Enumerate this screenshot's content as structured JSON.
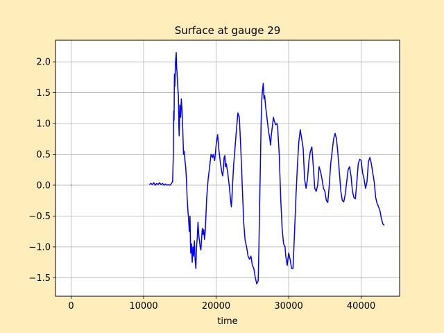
{
  "chart_data": {
    "type": "line",
    "title": "Surface at gauge 29",
    "xlabel": "time",
    "ylabel": "",
    "xlim": [
      -2150,
      45300
    ],
    "ylim": [
      -1.8,
      2.35
    ],
    "xticks": [
      0,
      10000,
      20000,
      30000,
      40000
    ],
    "xtick_labels": [
      "0",
      "10000",
      "20000",
      "30000",
      "40000"
    ],
    "yticks": [
      -1.5,
      -1.0,
      -0.5,
      0.0,
      0.5,
      1.0,
      1.5,
      2.0
    ],
    "ytick_labels": [
      "−1.5",
      "−1.0",
      "−0.5",
      "0.0",
      "0.5",
      "1.0",
      "1.5",
      "2.0"
    ],
    "grid": true,
    "colors": {
      "line": "#0000ff",
      "background": "#ffeebb",
      "plot_area": "#ffffff",
      "grid": "#b0b0b0"
    },
    "series": [
      {
        "segments": [
          [
            [
              0,
              0.0
            ],
            [
              60,
              0.0
            ]
          ],
          [
            [
              10800,
              0.01
            ],
            [
              11000,
              0.03
            ],
            [
              11200,
              0.01
            ],
            [
              11400,
              0.04
            ],
            [
              11600,
              0.0
            ],
            [
              11800,
              0.03
            ],
            [
              12000,
              0.01
            ],
            [
              12200,
              0.04
            ],
            [
              12400,
              0.01
            ],
            [
              12600,
              0.03
            ],
            [
              12800,
              0.0
            ],
            [
              13000,
              0.02
            ],
            [
              13200,
              0.0
            ],
            [
              13400,
              0.01
            ],
            [
              13600,
              0.0
            ],
            [
              13800,
              0.02
            ],
            [
              14000,
              0.06
            ],
            [
              14100,
              0.5
            ],
            [
              14150,
              1.2
            ],
            [
              14200,
              1.05
            ],
            [
              14250,
              1.8
            ],
            [
              14300,
              1.6
            ],
            [
              14400,
              2.0
            ],
            [
              14500,
              2.15
            ],
            [
              14550,
              1.9
            ],
            [
              14600,
              1.85
            ],
            [
              14700,
              1.6
            ],
            [
              14800,
              1.45
            ],
            [
              14850,
              1.0
            ],
            [
              14900,
              0.8
            ],
            [
              15000,
              1.3
            ],
            [
              15100,
              1.1
            ],
            [
              15200,
              1.4
            ],
            [
              15300,
              1.2
            ],
            [
              15400,
              0.9
            ],
            [
              15500,
              0.5
            ],
            [
              15600,
              0.55
            ],
            [
              15700,
              0.4
            ],
            [
              15800,
              0.3
            ],
            [
              15900,
              0.1
            ],
            [
              16000,
              -0.2
            ],
            [
              16100,
              -0.4
            ],
            [
              16200,
              -0.55
            ],
            [
              16300,
              -0.75
            ],
            [
              16400,
              -0.5
            ],
            [
              16450,
              -0.9
            ],
            [
              16500,
              -1.1
            ],
            [
              16600,
              -0.95
            ],
            [
              16700,
              -1.25
            ],
            [
              16800,
              -1.0
            ],
            [
              16900,
              -1.15
            ],
            [
              17000,
              -0.9
            ],
            [
              17100,
              -1.2
            ],
            [
              17200,
              -1.35
            ],
            [
              17300,
              -1.0
            ],
            [
              17400,
              -0.85
            ],
            [
              17500,
              -0.6
            ],
            [
              17600,
              -0.8
            ],
            [
              17800,
              -1.0
            ],
            [
              17900,
              -1.05
            ],
            [
              18000,
              -0.85
            ],
            [
              18100,
              -0.7
            ],
            [
              18200,
              -0.8
            ],
            [
              18300,
              -0.72
            ],
            [
              18400,
              -0.88
            ],
            [
              18500,
              -0.75
            ],
            [
              18700,
              -0.2
            ],
            [
              18900,
              0.1
            ],
            [
              19100,
              0.3
            ],
            [
              19300,
              0.5
            ],
            [
              19500,
              0.45
            ],
            [
              19600,
              0.5
            ],
            [
              19800,
              0.4
            ],
            [
              20000,
              0.65
            ],
            [
              20200,
              0.82
            ],
            [
              20400,
              0.55
            ],
            [
              20600,
              0.35
            ],
            [
              20800,
              0.2
            ],
            [
              20900,
              0.15
            ],
            [
              21000,
              0.25
            ],
            [
              21100,
              0.45
            ],
            [
              21200,
              0.48
            ],
            [
              21300,
              0.3
            ],
            [
              21400,
              0.35
            ],
            [
              21600,
              0.2
            ],
            [
              21800,
              0.0
            ],
            [
              22000,
              -0.25
            ],
            [
              22100,
              -0.35
            ],
            [
              22200,
              -0.15
            ],
            [
              22400,
              0.3
            ],
            [
              22600,
              0.6
            ],
            [
              22800,
              0.9
            ],
            [
              23000,
              1.17
            ],
            [
              23200,
              1.1
            ],
            [
              23400,
              0.6
            ],
            [
              23600,
              0.0
            ],
            [
              23800,
              -0.6
            ],
            [
              24000,
              -0.9
            ],
            [
              24200,
              -1.0
            ],
            [
              24400,
              -1.15
            ],
            [
              24600,
              -1.2
            ],
            [
              24800,
              -1.15
            ],
            [
              25000,
              -1.3
            ],
            [
              25200,
              -1.35
            ],
            [
              25400,
              -1.5
            ],
            [
              25600,
              -1.6
            ],
            [
              25800,
              -1.55
            ],
            [
              25900,
              -1.0
            ],
            [
              26000,
              -0.3
            ],
            [
              26100,
              0.3
            ],
            [
              26200,
              1.0
            ],
            [
              26300,
              1.4
            ],
            [
              26400,
              1.55
            ],
            [
              26500,
              1.65
            ],
            [
              26600,
              1.4
            ],
            [
              26700,
              1.45
            ],
            [
              26800,
              1.3
            ],
            [
              26900,
              1.2
            ],
            [
              27000,
              1.1
            ],
            [
              27200,
              0.9
            ],
            [
              27400,
              0.75
            ],
            [
              27500,
              0.65
            ],
            [
              27600,
              0.8
            ],
            [
              27800,
              1.0
            ],
            [
              27900,
              1.1
            ],
            [
              28000,
              1.05
            ],
            [
              28200,
              0.98
            ],
            [
              28400,
              1.0
            ],
            [
              28500,
              0.9
            ],
            [
              28700,
              0.5
            ],
            [
              28900,
              -0.2
            ],
            [
              29100,
              -0.7
            ],
            [
              29300,
              -0.95
            ],
            [
              29500,
              -1.0
            ],
            [
              29600,
              -1.15
            ],
            [
              29800,
              -1.3
            ],
            [
              29900,
              -1.2
            ],
            [
              30000,
              -1.1
            ],
            [
              30200,
              -1.2
            ],
            [
              30400,
              -1.35
            ],
            [
              30600,
              -1.35
            ],
            [
              30800,
              -0.8
            ],
            [
              31000,
              -0.2
            ],
            [
              31200,
              0.3
            ],
            [
              31400,
              0.7
            ],
            [
              31600,
              0.9
            ],
            [
              31800,
              0.75
            ],
            [
              32000,
              0.6
            ],
            [
              32200,
              0.1
            ],
            [
              32400,
              -0.05
            ],
            [
              32600,
              0.1
            ],
            [
              32800,
              0.4
            ],
            [
              33000,
              0.55
            ],
            [
              33200,
              0.62
            ],
            [
              33400,
              0.3
            ],
            [
              33600,
              -0.05
            ],
            [
              33800,
              -0.1
            ],
            [
              34000,
              0.0
            ],
            [
              34200,
              0.3
            ],
            [
              34400,
              0.22
            ],
            [
              34600,
              0.1
            ],
            [
              34800,
              -0.05
            ],
            [
              35000,
              -0.1
            ],
            [
              35200,
              -0.25
            ],
            [
              35400,
              -0.28
            ],
            [
              35600,
              0.0
            ],
            [
              35800,
              0.35
            ],
            [
              36000,
              0.55
            ],
            [
              36200,
              0.75
            ],
            [
              36400,
              0.84
            ],
            [
              36600,
              0.75
            ],
            [
              36800,
              0.5
            ],
            [
              37000,
              0.2
            ],
            [
              37200,
              -0.1
            ],
            [
              37400,
              -0.25
            ],
            [
              37600,
              -0.27
            ],
            [
              37800,
              -0.15
            ],
            [
              38000,
              0.05
            ],
            [
              38200,
              0.25
            ],
            [
              38400,
              0.3
            ],
            [
              38600,
              0.15
            ],
            [
              38800,
              -0.1
            ],
            [
              39000,
              -0.2
            ],
            [
              39200,
              -0.22
            ],
            [
              39400,
              0.05
            ],
            [
              39600,
              0.35
            ],
            [
              39800,
              0.42
            ],
            [
              40000,
              0.4
            ],
            [
              40200,
              0.2
            ],
            [
              40400,
              0.1
            ],
            [
              40600,
              -0.05
            ],
            [
              40800,
              0.05
            ],
            [
              41000,
              0.38
            ],
            [
              41200,
              0.45
            ],
            [
              41400,
              0.35
            ],
            [
              41600,
              0.2
            ],
            [
              41800,
              0.05
            ],
            [
              42000,
              -0.2
            ],
            [
              42200,
              -0.3
            ],
            [
              42400,
              -0.35
            ],
            [
              42600,
              -0.42
            ],
            [
              42800,
              -0.55
            ],
            [
              43000,
              -0.63
            ],
            [
              43200,
              -0.65
            ]
          ]
        ]
      }
    ]
  }
}
